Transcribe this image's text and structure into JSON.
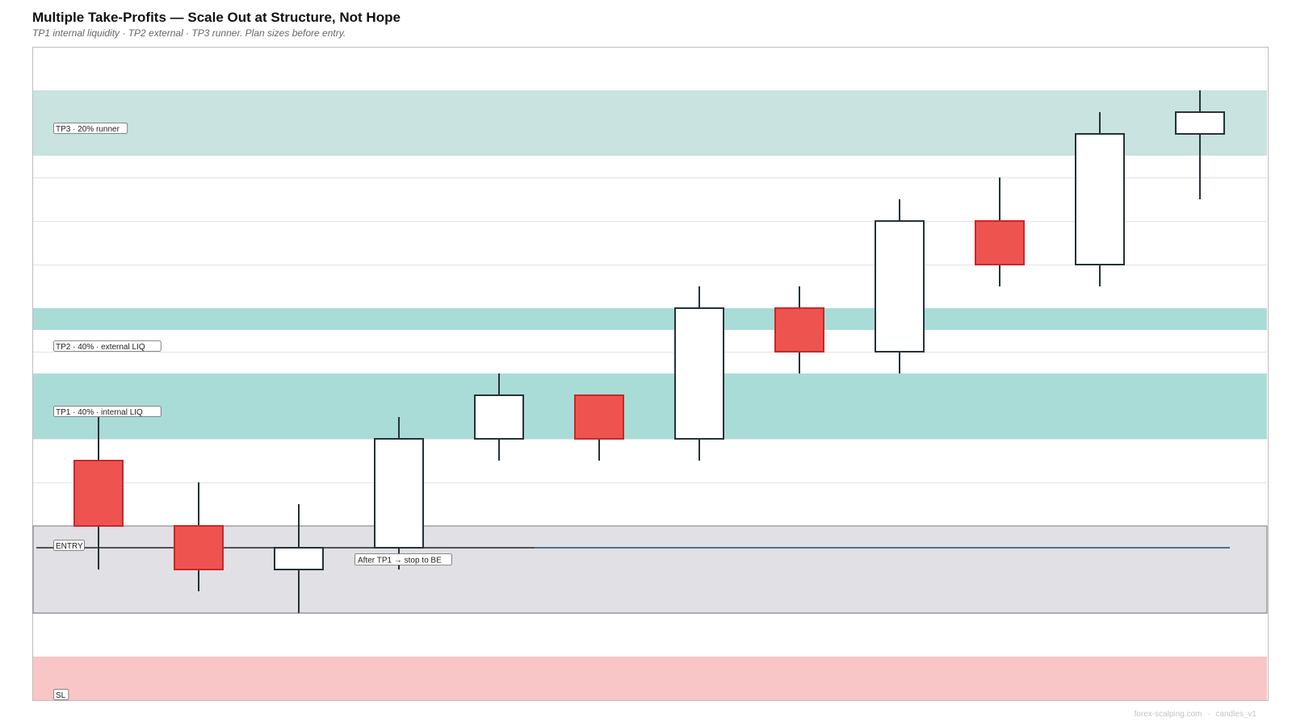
{
  "header": {
    "title": "Multiple Take-Profits — Scale Out at Structure, Not Hope",
    "subtitle": "TP1 internal liquidity · TP2 external · TP3 runner. Plan sizes before entry."
  },
  "footer": {
    "site": "forex-scalping.com",
    "separator": "·",
    "version": "candles_v1"
  },
  "colors": {
    "bull_fill": "#ffffff",
    "bear_fill": "#ef5350",
    "bull_stroke": "#263238",
    "bear_stroke": "#c62828",
    "tp_zone": "#aadcd7",
    "tp3_zone": "#c8e3e0",
    "entry_zone": "#e1e0e5",
    "sl_zone": "#f8c6c6",
    "entry_line": "#1e4b7a"
  },
  "chart_data": {
    "type": "candlestick",
    "ylim": [
      0,
      30
    ],
    "candles": [
      {
        "index": 1,
        "open": 16,
        "high": 18,
        "low": 11,
        "close": 13
      },
      {
        "index": 2,
        "open": 13,
        "high": 15,
        "low": 10,
        "close": 11
      },
      {
        "index": 3,
        "open": 11,
        "high": 14,
        "low": 9,
        "close": 12
      },
      {
        "index": 4,
        "open": 12,
        "high": 18,
        "low": 11,
        "close": 17
      },
      {
        "index": 5,
        "open": 17,
        "high": 20,
        "low": 16,
        "close": 19
      },
      {
        "index": 6,
        "open": 19,
        "high": 19,
        "low": 16,
        "close": 17
      },
      {
        "index": 7,
        "open": 17,
        "high": 24,
        "low": 16,
        "close": 23
      },
      {
        "index": 8,
        "open": 23,
        "high": 24,
        "low": 20,
        "close": 21
      },
      {
        "index": 9,
        "open": 21,
        "high": 28,
        "low": 20,
        "close": 27
      },
      {
        "index": 10,
        "open": 27,
        "high": 29,
        "low": 24,
        "close": 25
      },
      {
        "index": 11,
        "open": 25,
        "high": 32,
        "low": 24,
        "close": 31
      },
      {
        "index": 12,
        "open": 31,
        "high": 33,
        "low": 28,
        "close": 32
      }
    ],
    "zones": [
      {
        "label": "TP3 · 20% runner",
        "from": 30,
        "to": 33,
        "kind": "tp3"
      },
      {
        "label": "TP2 · 40% · external LIQ",
        "from": 23,
        "to": 22,
        "kind": "tp"
      },
      {
        "label": "TP1 · 40% · internal LIQ",
        "from": 17,
        "to": 20,
        "kind": "tp"
      },
      {
        "label": "",
        "from": 9,
        "to": 13,
        "kind": "entry"
      },
      {
        "label": "SL",
        "from": 5,
        "to": 7,
        "kind": "sl"
      }
    ],
    "entry_level": 12,
    "entry_label": "ENTRY",
    "annotations": [
      {
        "text": "After TP1 → stop to BE",
        "candle": 4
      }
    ],
    "grid": true
  }
}
